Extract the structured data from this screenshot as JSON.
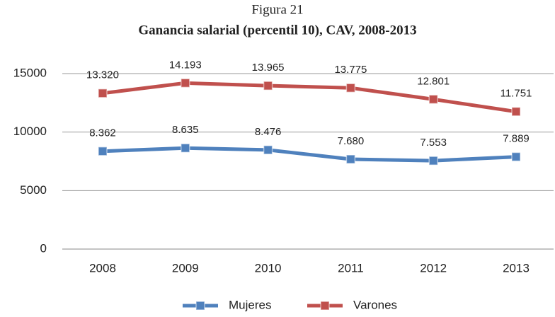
{
  "chart_data": {
    "type": "line",
    "title": "Figura 21",
    "subtitle": "Ganancia salarial (percentil 10), CAV, 2008-2013",
    "categories": [
      "2008",
      "2009",
      "2010",
      "2011",
      "2012",
      "2013"
    ],
    "series": [
      {
        "name": "Mujeres",
        "color": "#4f81bd",
        "values": [
          8362,
          8635,
          8476,
          7680,
          7553,
          7889
        ],
        "value_labels": [
          "8.362",
          "8.635",
          "8.476",
          "7.680",
          "7.553",
          "7.889"
        ]
      },
      {
        "name": "Varones",
        "color": "#c0504d",
        "values": [
          13320,
          14193,
          13965,
          13775,
          12801,
          11751
        ],
        "value_labels": [
          "13.320",
          "14.193",
          "13.965",
          "13.775",
          "12.801",
          "11.751"
        ]
      }
    ],
    "ylim": [
      0,
      15000
    ],
    "yticks": [
      0,
      5000,
      10000,
      15000
    ],
    "grid": true,
    "legend": "bottom"
  }
}
